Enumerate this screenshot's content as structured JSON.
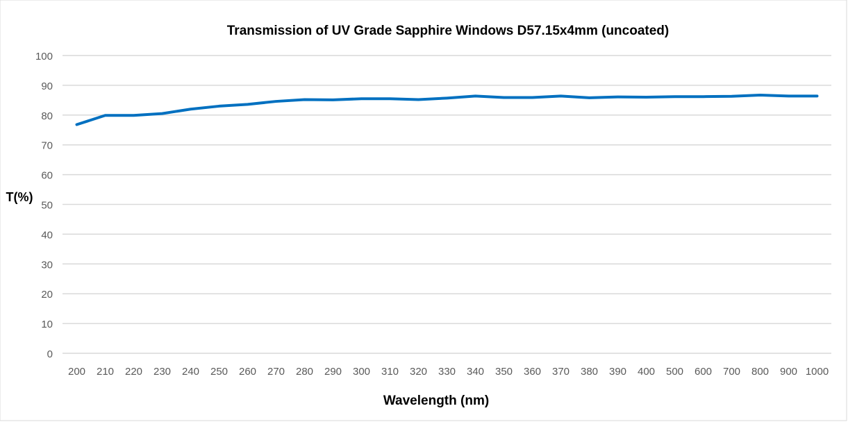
{
  "chart_data": {
    "type": "line",
    "title": "Transmission of UV Grade Sapphire Windows D57.15x4mm (uncoated)",
    "xlabel": "Wavelength (nm)",
    "ylabel": "T(%)",
    "ylim": [
      0,
      100
    ],
    "yticks": [
      0,
      10,
      20,
      30,
      40,
      50,
      60,
      70,
      80,
      90,
      100
    ],
    "grid": true,
    "categories": [
      "200",
      "210",
      "220",
      "230",
      "240",
      "250",
      "260",
      "270",
      "280",
      "290",
      "300",
      "310",
      "320",
      "330",
      "340",
      "350",
      "360",
      "370",
      "380",
      "390",
      "400",
      "500",
      "600",
      "700",
      "800",
      "900",
      "1000"
    ],
    "series": [
      {
        "name": "T(%)",
        "color": "#0070C0",
        "values": [
          76.8,
          79.9,
          79.9,
          80.5,
          82.0,
          83.0,
          83.6,
          84.6,
          85.2,
          85.1,
          85.5,
          85.5,
          85.2,
          85.7,
          86.4,
          85.9,
          85.9,
          86.4,
          85.8,
          86.1,
          86.0,
          86.2,
          86.2,
          86.3,
          86.7,
          86.4,
          86.4
        ]
      }
    ]
  }
}
